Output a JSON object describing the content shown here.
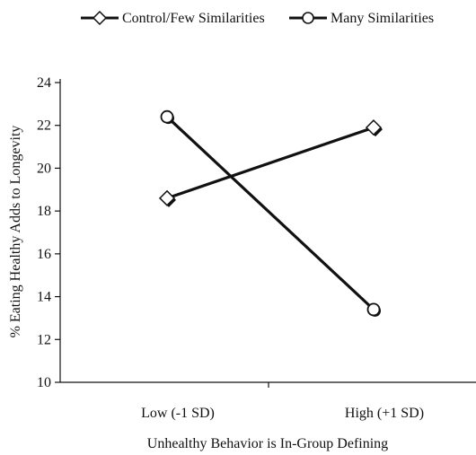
{
  "chart_data": {
    "type": "line",
    "categories": [
      "Low (-1 SD)",
      "High (+1 SD)"
    ],
    "series": [
      {
        "name": "Control/Few Similarities",
        "marker": "diamond",
        "values": [
          18.6,
          21.9
        ]
      },
      {
        "name": "Many Similarities",
        "marker": "circle",
        "values": [
          22.4,
          13.4
        ]
      }
    ],
    "xlabel": "Unhealthy Behavior is In-Group Defining",
    "ylabel": "% Eating Healthy Adds to Longevity",
    "ylim": [
      10,
      24
    ],
    "yticks": [
      10,
      12,
      14,
      16,
      18,
      20,
      22,
      24
    ],
    "grid": false,
    "legend_position": "top",
    "colors": {
      "line": "#111111",
      "marker_fill": "#ffffff"
    }
  }
}
